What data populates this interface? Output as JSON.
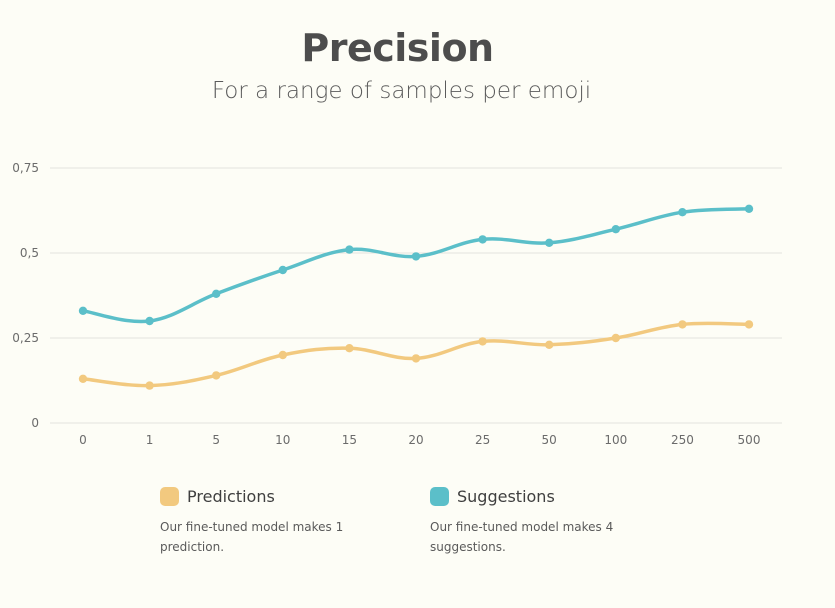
{
  "chart_data": {
    "type": "line",
    "title": "Precision",
    "subtitle": "For a range of samples per emoji",
    "categories": [
      "0",
      "1",
      "5",
      "10",
      "15",
      "20",
      "25",
      "50",
      "100",
      "250",
      "500"
    ],
    "y_ticks": [
      "0",
      "0,25",
      "0,5",
      "0,75"
    ],
    "ylim": [
      0,
      0.75
    ],
    "grid": "horizontal",
    "legend_position": "bottom",
    "series": [
      {
        "name": "Predictions",
        "color": "#f2c97f",
        "values": [
          0.13,
          0.11,
          0.14,
          0.2,
          0.22,
          0.19,
          0.24,
          0.23,
          0.25,
          0.29,
          0.29
        ],
        "description": "Our fine-tuned model makes 1 prediction."
      },
      {
        "name": "Suggestions",
        "color": "#5bbfc9",
        "values": [
          0.33,
          0.3,
          0.38,
          0.45,
          0.51,
          0.49,
          0.54,
          0.53,
          0.57,
          0.62,
          0.63
        ],
        "description": "Our fine-tuned model makes 4 suggestions."
      }
    ]
  },
  "colors": {
    "background": "#fdfdf6",
    "grid": "#e3e3dd",
    "axis_text": "#6b6b6b"
  }
}
